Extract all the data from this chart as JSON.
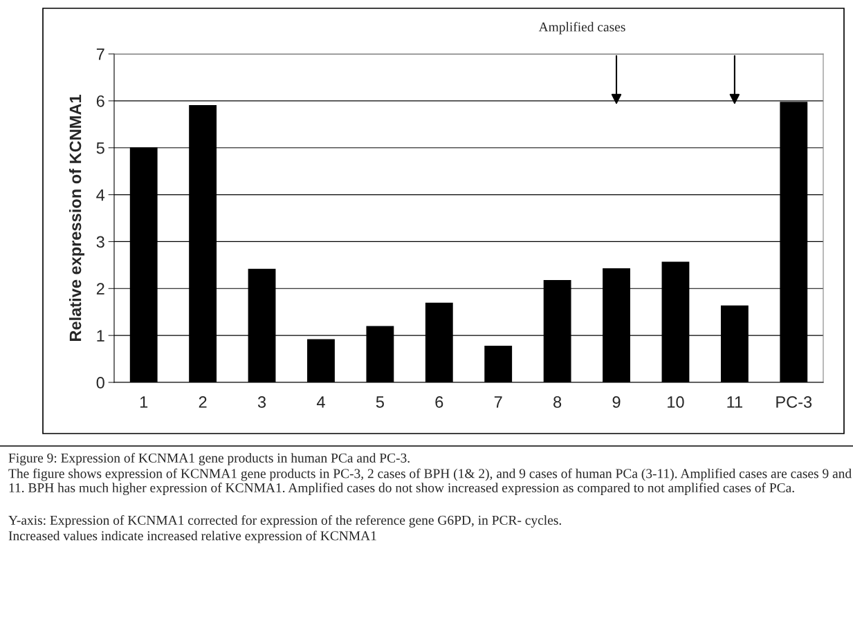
{
  "chart_data": {
    "type": "bar",
    "ylabel": "Relative expression of KCNMA1",
    "categories": [
      "1",
      "2",
      "3",
      "4",
      "5",
      "6",
      "7",
      "8",
      "9",
      "10",
      "11",
      "PC-3"
    ],
    "values": [
      5.0,
      5.9,
      2.41,
      0.91,
      1.19,
      1.69,
      0.77,
      2.17,
      2.42,
      2.56,
      1.63,
      5.97
    ],
    "color": "#000000",
    "ylim": [
      0,
      7
    ],
    "yticks": [
      0,
      1,
      2,
      3,
      4,
      5,
      6,
      7
    ],
    "grid": "y",
    "annotations": [
      "Amplified cases",
      "Figure 9: Expression of KCNMA1 gene products in human PCa and PC-3.",
      "The figure shows expression of KCNMA1 gene products in PC-3, 2 cases of BPH (1& 2), and 9 cases of human PCa (3-11). Amplified cases are cases 9 and 11. BPH has much higher expression of KCNMA1. Amplified cases do not show increased expression as compared to not amplified cases of PCa.",
      "Y-axis: Expression of KCNMA1 corrected for expression of the reference gene G6PD, in PCR- cycles.",
      "Increased values indicate increased relative expression of KCNMA1"
    ]
  }
}
